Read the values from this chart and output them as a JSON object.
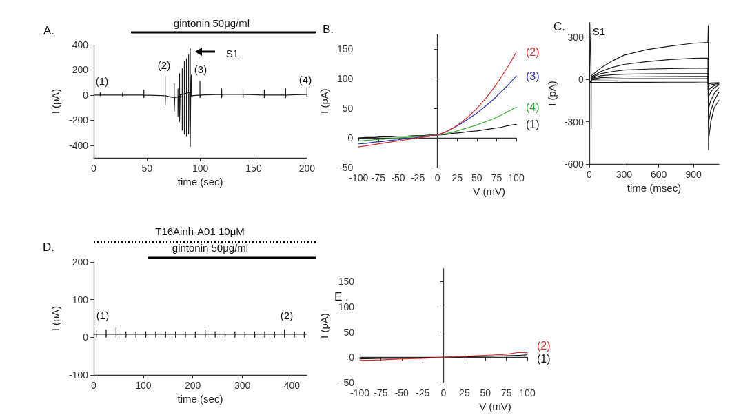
{
  "chart_data": [
    {
      "type": "line",
      "title": "A.",
      "xlabel": "time (sec)",
      "ylabel": "I (pA)",
      "xlim": [
        0,
        200
      ],
      "xticks": [
        0,
        50,
        100,
        150,
        200
      ],
      "ylim": [
        -500,
        400
      ],
      "yticks": [
        -400,
        -200,
        0,
        200,
        400
      ],
      "annotations": [
        "gintonin 50μg/ml",
        "(1)",
        "(2)",
        "(3)",
        "(4)",
        "S1"
      ],
      "series": [
        {
          "color": "#1a1a1a",
          "x": [
            0,
            6,
            6,
            6,
            6.3,
            27,
            27,
            27,
            27.3,
            47,
            47,
            47,
            47.3,
            67,
            67,
            67,
            67.3,
            72,
            75.5,
            75.5,
            75.5,
            76,
            79,
            79,
            79,
            79.3,
            80.5,
            80.5,
            80.5,
            81,
            83,
            83,
            83,
            83.3,
            85,
            85,
            85,
            85.3,
            87,
            87,
            87,
            87.3,
            89,
            89,
            89,
            89.3,
            90.5,
            90.5,
            90.5,
            91,
            91.5,
            91.5,
            92,
            99.6,
            99.6,
            99.6,
            100,
            120,
            120,
            120,
            120.3,
            140,
            140,
            140,
            140.3,
            160,
            160,
            160,
            160.3,
            180,
            180,
            180,
            180.3,
            200,
            200,
            200
          ],
          "values": [
            0,
            0,
            20,
            -5,
            0,
            0,
            15,
            -10,
            0,
            0,
            40,
            -20,
            0,
            -5,
            150,
            -80,
            -5,
            -15,
            -20,
            90,
            -130,
            -20,
            -15,
            50,
            -170,
            -10,
            -5,
            170,
            -210,
            0,
            5,
            210,
            -280,
            5,
            10,
            270,
            -310,
            10,
            15,
            290,
            -330,
            15,
            20,
            320,
            -310,
            20,
            20,
            370,
            -410,
            15,
            160,
            -10,
            -5,
            0,
            110,
            -20,
            0,
            5,
            50,
            -20,
            5,
            5,
            50,
            -20,
            5,
            0,
            40,
            -20,
            0,
            0,
            50,
            -20,
            0,
            5,
            60,
            -10
          ]
        }
      ]
    },
    {
      "type": "line",
      "title": "B.",
      "xlabel": "V (mV)",
      "ylabel": "I (pA)",
      "xlim": [
        -100,
        100
      ],
      "xticks": [
        -100,
        -75,
        -50,
        -25,
        0,
        25,
        50,
        75,
        100
      ],
      "ylim": [
        -50,
        175
      ],
      "yticks": [
        -50,
        0,
        50,
        100,
        150
      ],
      "x": [
        -100,
        -90,
        -80,
        -70,
        -60,
        -50,
        -40,
        -30,
        -20,
        -10,
        0,
        10,
        20,
        30,
        40,
        50,
        60,
        70,
        80,
        90,
        100
      ],
      "series": [
        {
          "name": "(1)",
          "color": "#111111",
          "values": [
            0,
            1,
            1,
            2,
            2,
            3,
            3,
            4,
            4,
            5,
            5,
            6,
            8,
            9,
            11,
            12,
            14,
            16,
            18,
            21,
            23
          ]
        },
        {
          "name": "(4)",
          "color": "#2ea82e",
          "values": [
            -5,
            -4,
            -3,
            -2,
            -1,
            0,
            1,
            2,
            3,
            4,
            5,
            7,
            10,
            14,
            18,
            22,
            27,
            32,
            38,
            45,
            52
          ]
        },
        {
          "name": "(3)",
          "color": "#2a2ab8",
          "values": [
            -10,
            -9,
            -7,
            -6,
            -4,
            -3,
            -1,
            0,
            2,
            3,
            5,
            10,
            17,
            24,
            33,
            42,
            53,
            64,
            77,
            90,
            105
          ]
        },
        {
          "name": "(2)",
          "color": "#d92b2b",
          "values": [
            -15,
            -13,
            -11,
            -9,
            -7,
            -5,
            -3,
            -1,
            1,
            3,
            5,
            10,
            17,
            26,
            37,
            50,
            65,
            82,
            101,
            122,
            145
          ]
        }
      ]
    },
    {
      "type": "line",
      "title": "C.",
      "xlabel": "time (msec)",
      "ylabel": "I (pA)",
      "xlim": [
        0,
        1120
      ],
      "xticks": [
        0,
        300,
        600,
        900
      ],
      "ylim": [
        -600,
        400
      ],
      "yticks": [
        -600,
        -300,
        0,
        300
      ],
      "annotations": [
        "S1"
      ],
      "x": [
        0,
        15,
        16,
        17,
        25,
        100,
        200,
        300,
        500,
        700,
        900,
        1025,
        1028,
        1030,
        1032,
        1050,
        1080,
        1120
      ],
      "series": [
        {
          "color": "#1a1a1a",
          "values": [
            -20,
            390,
            -350,
            20,
            30,
            80,
            130,
            170,
            210,
            235,
            255,
            260,
            380,
            -500,
            -420,
            -300,
            -200,
            -150
          ]
        },
        {
          "color": "#1a1a1a",
          "values": [
            -20,
            -20,
            -20,
            15,
            20,
            55,
            85,
            105,
            125,
            140,
            148,
            150,
            150,
            -350,
            -300,
            -220,
            -150,
            -90
          ]
        },
        {
          "color": "#1a1a1a",
          "values": [
            -20,
            -20,
            -20,
            10,
            15,
            40,
            55,
            65,
            72,
            76,
            78,
            80,
            80,
            -250,
            -200,
            -150,
            -100,
            -60
          ]
        },
        {
          "color": "#1a1a1a",
          "values": [
            -20,
            -20,
            -20,
            5,
            8,
            25,
            32,
            36,
            38,
            40,
            40,
            40,
            40,
            -150,
            -120,
            -90,
            -60,
            -40
          ]
        },
        {
          "color": "#1a1a1a",
          "values": [
            -20,
            -20,
            -20,
            0,
            3,
            12,
            15,
            17,
            18,
            19,
            20,
            20,
            20,
            -90,
            -75,
            -60,
            -45,
            -35
          ]
        },
        {
          "color": "#1a1a1a",
          "values": [
            -20,
            -20,
            -20,
            -5,
            -3,
            2,
            3,
            4,
            4,
            5,
            5,
            5,
            5,
            -50,
            -45,
            -40,
            -35,
            -30
          ]
        },
        {
          "color": "#1a1a1a",
          "values": [
            -20,
            -20,
            -20,
            -10,
            -11,
            -12,
            -12,
            -13,
            -13,
            -13,
            -13,
            -13,
            -13,
            -35,
            -33,
            -30,
            -28,
            -25
          ]
        },
        {
          "color": "#1a1a1a",
          "values": [
            -20,
            -20,
            -20,
            -20,
            -21,
            -22,
            -22,
            -23,
            -23,
            -24,
            -24,
            -25,
            -25,
            -28,
            -27,
            -26,
            -25,
            -25
          ]
        }
      ]
    },
    {
      "type": "line",
      "title": "D.",
      "xlabel": "time (sec)",
      "ylabel": "I (pA)",
      "xlim": [
        0,
        430
      ],
      "xticks": [
        0,
        100,
        200,
        300,
        400
      ],
      "ylim": [
        -100,
        200
      ],
      "yticks": [
        -100,
        0,
        100,
        200
      ],
      "annotations": [
        "T16Ainh-A01 10μM",
        "gintonin 50μg/ml",
        "(1)",
        "(2)"
      ],
      "series": [
        {
          "color": "#1a1a1a",
          "x": [
            0,
            5,
            5,
            5,
            5.5,
            25,
            25,
            25,
            25.5,
            45,
            45,
            45,
            45.5,
            65,
            65,
            65,
            65.5,
            85,
            85,
            85,
            85.5,
            105,
            105,
            105,
            105.5,
            125,
            125,
            125,
            125.5,
            145,
            145,
            145,
            145.5,
            165,
            165,
            165,
            165.5,
            185,
            185,
            185,
            185.5,
            205,
            205,
            205,
            205.5,
            225,
            225,
            225,
            225.5,
            245,
            245,
            245,
            245.5,
            265,
            265,
            265,
            265.5,
            285,
            285,
            285,
            285.5,
            305,
            305,
            305,
            305.5,
            325,
            325,
            325,
            325.5,
            345,
            345,
            345,
            345.5,
            365,
            365,
            365,
            365.5,
            385,
            385,
            385,
            385.5,
            405,
            405,
            405,
            405.5,
            425,
            425,
            425,
            425.5,
            430
          ],
          "values": [
            8,
            8,
            20,
            0,
            8,
            8,
            20,
            0,
            8,
            8,
            25,
            0,
            8,
            8,
            15,
            0,
            8,
            8,
            15,
            0,
            8,
            8,
            15,
            0,
            8,
            8,
            15,
            0,
            8,
            8,
            15,
            0,
            8,
            8,
            15,
            0,
            8,
            8,
            15,
            0,
            8,
            8,
            15,
            0,
            8,
            8,
            20,
            0,
            8,
            8,
            15,
            0,
            8,
            8,
            15,
            0,
            8,
            8,
            15,
            0,
            8,
            8,
            15,
            0,
            8,
            8,
            15,
            0,
            8,
            8,
            15,
            0,
            8,
            8,
            15,
            0,
            8,
            8,
            20,
            0,
            8,
            8,
            15,
            0,
            8,
            8,
            15,
            0,
            8,
            8
          ]
        }
      ]
    },
    {
      "type": "line",
      "title": "E .",
      "xlabel": "V (mV)",
      "ylabel": "I (pA)",
      "xlim": [
        -100,
        100
      ],
      "xticks": [
        -100,
        -75,
        -50,
        -25,
        0,
        25,
        50,
        75,
        100
      ],
      "ylim": [
        -50,
        175
      ],
      "yticks": [
        -50,
        0,
        50,
        100,
        150
      ],
      "x": [
        -100,
        -75,
        -50,
        -25,
        0,
        25,
        50,
        75,
        90,
        100
      ],
      "series": [
        {
          "name": "(1)",
          "color": "#111111",
          "values": [
            -3,
            -2,
            -2,
            -1,
            0,
            1,
            2,
            3,
            4,
            5
          ]
        },
        {
          "name": "(2)",
          "color": "#d92b2b",
          "values": [
            -6,
            -5,
            -3,
            -2,
            0,
            2,
            4,
            6,
            10,
            9
          ]
        }
      ]
    }
  ]
}
